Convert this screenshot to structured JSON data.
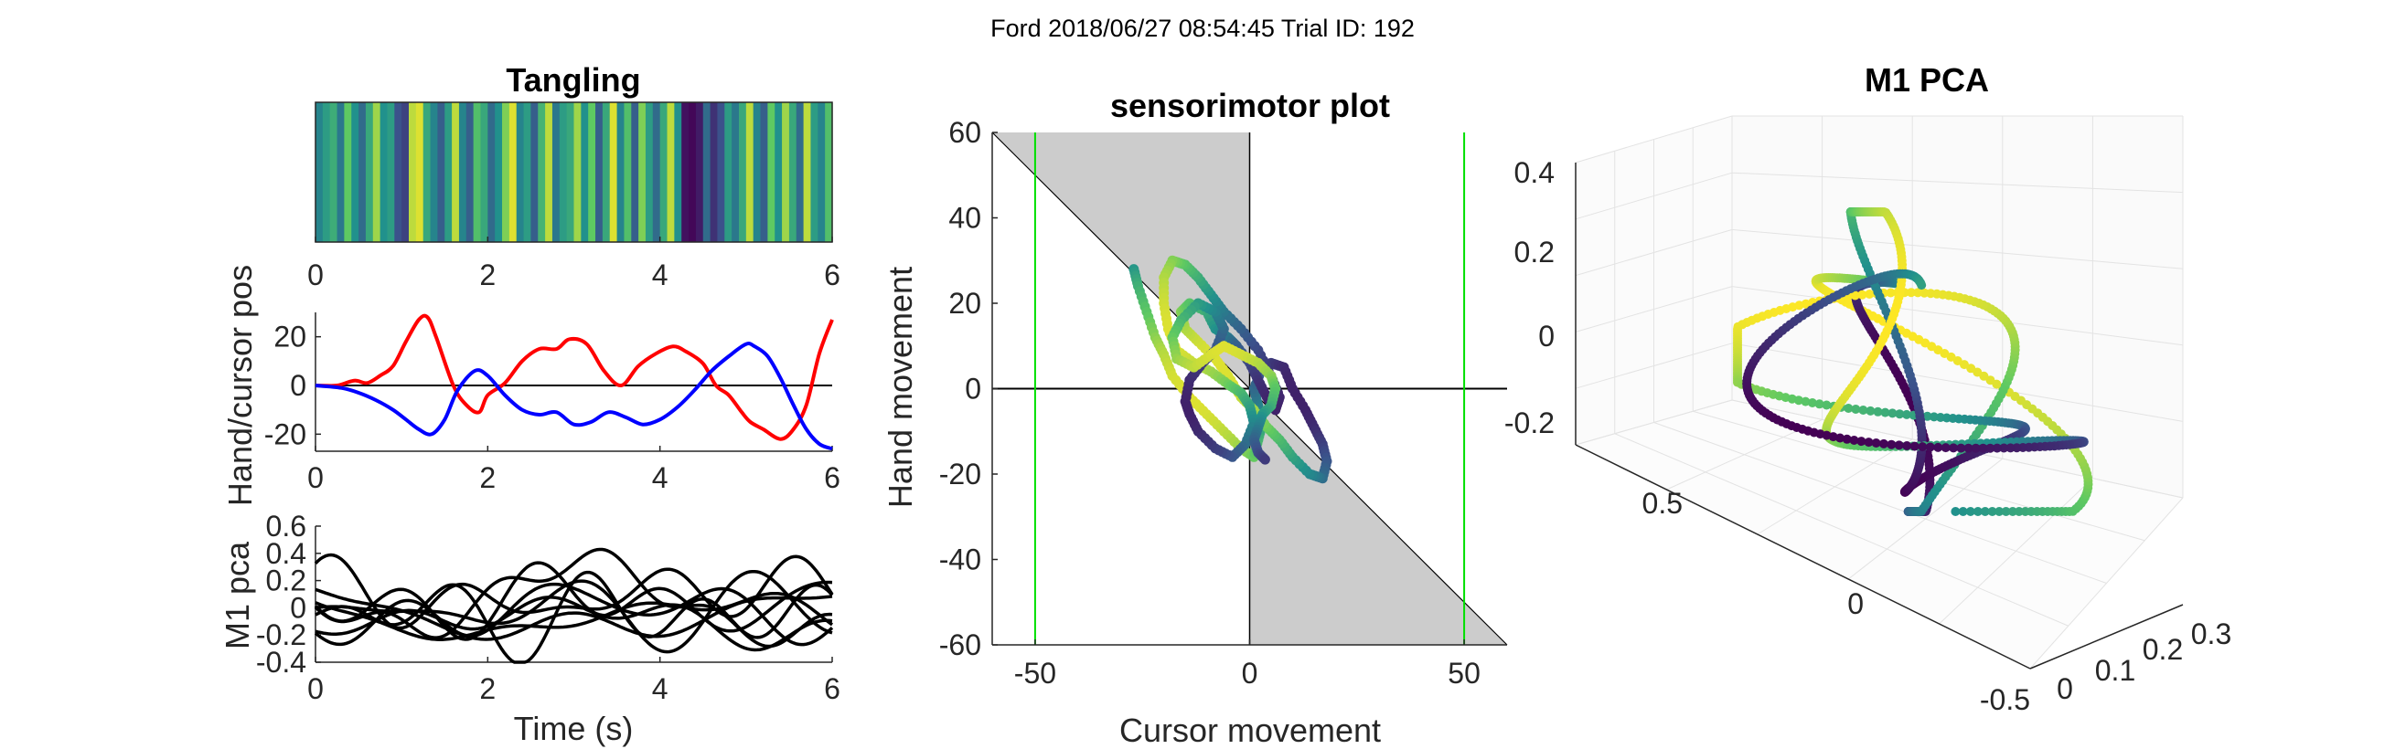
{
  "figure": {
    "suptitle": "Ford 2018/06/27 08:54:45 Trial ID: 192"
  },
  "colors": {
    "viridis": [
      "#440154",
      "#3b528b",
      "#21918c",
      "#5ec962",
      "#fde725"
    ],
    "hand": "#ff0000",
    "cursor": "#0000ff",
    "target": "#00e000",
    "shade": "#cccccc"
  },
  "chart_data": [
    {
      "id": "tangling",
      "type": "heatmap",
      "title": "Tangling",
      "xlim": [
        0,
        6
      ],
      "xticks": [
        "0",
        "2",
        "4",
        "6"
      ],
      "values": [
        0.45,
        0.55,
        0.62,
        0.4,
        0.75,
        0.5,
        0.35,
        0.6,
        0.85,
        0.5,
        0.55,
        0.25,
        0.2,
        0.9,
        0.95,
        0.6,
        0.45,
        0.3,
        0.55,
        0.9,
        0.45,
        0.3,
        0.7,
        0.6,
        0.35,
        0.5,
        0.8,
        0.95,
        0.45,
        0.55,
        0.3,
        0.65,
        0.9,
        0.4,
        0.55,
        0.6,
        0.85,
        0.5,
        0.75,
        0.3,
        0.6,
        0.95,
        0.45,
        0.7,
        0.3,
        0.8,
        0.55,
        0.35,
        0.6,
        0.9,
        0.5,
        0.05,
        0.02,
        0.08,
        0.35,
        0.15,
        0.25,
        0.55,
        0.4,
        0.6,
        0.9,
        0.45,
        0.3,
        0.75,
        0.5,
        0.85,
        0.6,
        0.35,
        0.9,
        0.55,
        0.45,
        0.7
      ]
    },
    {
      "id": "hand_cursor",
      "type": "line",
      "ylabel": "Hand/cursor pos",
      "xlim": [
        0,
        6
      ],
      "ylim": [
        -27,
        30
      ],
      "xticks": [
        "0",
        "2",
        "4",
        "6"
      ],
      "yticks": [
        -20,
        0,
        20
      ],
      "zero_line": true,
      "series": [
        {
          "color": "#ff0000",
          "x": [
            0,
            0.25,
            0.45,
            0.6,
            0.75,
            0.9,
            1.05,
            1.2,
            1.3,
            1.4,
            1.6,
            1.75,
            1.9,
            2.0,
            2.2,
            2.4,
            2.6,
            2.8,
            2.95,
            3.15,
            3.35,
            3.55,
            3.75,
            3.95,
            4.15,
            4.3,
            4.5,
            4.65,
            4.8,
            4.95,
            5.05,
            5.2,
            5.4,
            5.55,
            5.7,
            5.85,
            6.0
          ],
          "y": [
            0,
            0,
            2,
            1,
            4,
            8,
            18,
            27,
            28,
            20,
            0,
            -8,
            -11,
            -4,
            1,
            10,
            15,
            15,
            19,
            17,
            6,
            0,
            8,
            13,
            16,
            14,
            9,
            0,
            -4,
            -11,
            -15,
            -18,
            -22,
            -18,
            -8,
            13,
            27
          ]
        },
        {
          "color": "#0000ff",
          "x": [
            0,
            0.3,
            0.5,
            0.7,
            0.9,
            1.05,
            1.2,
            1.35,
            1.5,
            1.65,
            1.85,
            2.0,
            2.2,
            2.4,
            2.6,
            2.8,
            3.0,
            3.2,
            3.4,
            3.6,
            3.8,
            4.0,
            4.2,
            4.4,
            4.6,
            4.8,
            5.0,
            5.1,
            5.25,
            5.4,
            5.55,
            5.7,
            5.85,
            6.0
          ],
          "y": [
            0,
            -1,
            -3,
            -6,
            -10,
            -14,
            -18,
            -20,
            -14,
            -2,
            6,
            4,
            -4,
            -10,
            -12,
            -11,
            -16,
            -15,
            -11,
            -13,
            -16,
            -14,
            -9,
            -2,
            6,
            12,
            17,
            16,
            12,
            3,
            -8,
            -18,
            -24,
            -26
          ]
        }
      ]
    },
    {
      "id": "m1_pca_time",
      "type": "line",
      "ylabel": "M1 pca",
      "xlabel": "Time (s)",
      "xlim": [
        0,
        6
      ],
      "ylim": [
        -0.4,
        0.6
      ],
      "xticks": [
        "0",
        "2",
        "4",
        "6"
      ],
      "yticks": [
        "0.6",
        "0.4",
        "0.2",
        "0",
        "-0.2",
        "-0.4"
      ]
    },
    {
      "id": "sensorimotor",
      "type": "scatter",
      "title": "sensorimotor plot",
      "xlabel": "Cursor movement",
      "ylabel": "Hand movement",
      "xlim": [
        -60,
        60
      ],
      "ylim": [
        -60,
        60
      ],
      "xticks": [
        -50,
        0,
        50
      ],
      "yticks": [
        60,
        40,
        20,
        0,
        -20,
        -40,
        -60
      ],
      "target_lines_x": [
        -50,
        50
      ],
      "trajectory": [
        [
          -27,
          28
        ],
        [
          -26,
          24
        ],
        [
          -24,
          18
        ],
        [
          -22,
          12
        ],
        [
          -20,
          8
        ],
        [
          -18,
          3
        ],
        [
          -14,
          -2
        ],
        [
          -10,
          -6
        ],
        [
          -6,
          -10
        ],
        [
          -2,
          -14
        ],
        [
          1,
          -16
        ],
        [
          2,
          -12
        ],
        [
          3,
          -8
        ],
        [
          2,
          -4
        ],
        [
          1,
          0
        ],
        [
          3,
          5
        ],
        [
          5,
          6
        ],
        [
          8,
          5
        ],
        [
          10,
          0
        ],
        [
          13,
          -5
        ],
        [
          15,
          -9
        ],
        [
          17,
          -13
        ],
        [
          18,
          -17
        ],
        [
          17,
          -21
        ],
        [
          14,
          -20
        ],
        [
          10,
          -16
        ],
        [
          7,
          -12
        ],
        [
          4,
          -9
        ],
        [
          1,
          -5
        ],
        [
          -2,
          -2
        ],
        [
          -5,
          3
        ],
        [
          -8,
          7
        ],
        [
          -12,
          11
        ],
        [
          -15,
          14
        ],
        [
          -16,
          18
        ],
        [
          -14,
          20
        ],
        [
          -10,
          18
        ],
        [
          -8,
          14
        ],
        [
          -5,
          12
        ],
        [
          -3,
          10
        ],
        [
          0,
          6
        ],
        [
          2,
          2
        ],
        [
          4,
          -2
        ],
        [
          6,
          -5
        ],
        [
          7,
          -2
        ],
        [
          5,
          3
        ],
        [
          2,
          9
        ],
        [
          -2,
          14
        ],
        [
          -6,
          18
        ],
        [
          -9,
          22
        ],
        [
          -12,
          26
        ],
        [
          -15,
          29
        ],
        [
          -18,
          30
        ],
        [
          -20,
          26
        ],
        [
          -20,
          20
        ],
        [
          -19,
          14
        ],
        [
          -17,
          9
        ],
        [
          -13,
          6
        ],
        [
          -9,
          4
        ],
        [
          -5,
          1
        ],
        [
          -2,
          -1
        ],
        [
          0,
          -4
        ],
        [
          1,
          -8
        ],
        [
          -1,
          -13
        ],
        [
          -4,
          -16
        ],
        [
          -8,
          -14
        ],
        [
          -12,
          -10
        ],
        [
          -14,
          -6
        ],
        [
          -15,
          -3
        ],
        [
          -14,
          2
        ],
        [
          -11,
          6
        ],
        [
          -8,
          9
        ],
        [
          -6,
          14
        ],
        [
          -8,
          18
        ],
        [
          -12,
          20
        ],
        [
          -16,
          16
        ],
        [
          -18,
          12
        ],
        [
          -17,
          7
        ],
        [
          -13,
          5
        ],
        [
          -9,
          8
        ],
        [
          -6,
          10
        ],
        [
          -2,
          8
        ],
        [
          2,
          6
        ],
        [
          5,
          3
        ],
        [
          6,
          0
        ],
        [
          5,
          -4
        ],
        [
          3,
          -6
        ],
        [
          2,
          -9
        ],
        [
          1,
          -12
        ],
        [
          2,
          -15
        ],
        [
          4,
          -17
        ]
      ]
    },
    {
      "id": "m1_pca_3d",
      "type": "scatter",
      "title": "M1 PCA",
      "zticks": [
        "0.4",
        "0.2",
        "0",
        "-0.2"
      ],
      "yticks": [
        "0.5",
        "0",
        "-0.5"
      ],
      "xticks": [
        "0",
        "0.1",
        "0.2",
        "0.3"
      ]
    }
  ]
}
